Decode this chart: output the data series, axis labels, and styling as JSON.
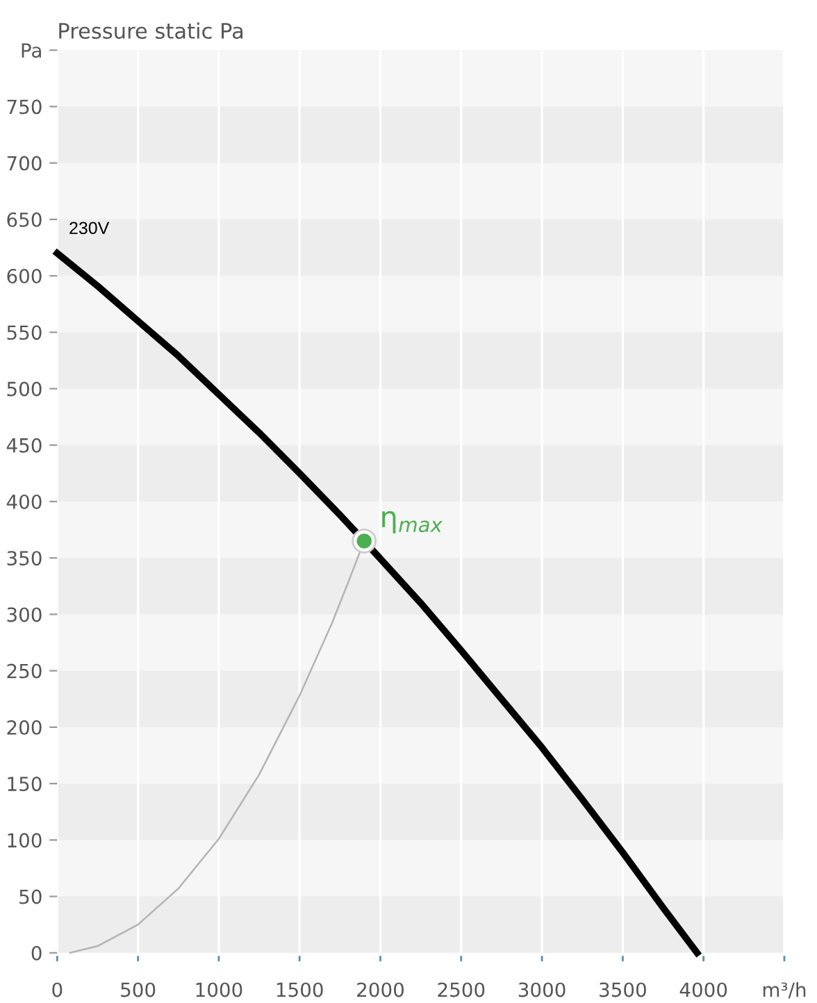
{
  "chart_data": {
    "type": "line",
    "title": "Pressure static Pa",
    "series": [
      {
        "name": "230V",
        "color": "#000000",
        "x": [
          0,
          250,
          500,
          750,
          1000,
          1250,
          1500,
          1750,
          1900,
          2250,
          2500,
          2750,
          3000,
          3250,
          3500,
          3750,
          3960
        ],
        "values": [
          620,
          591,
          560,
          529,
          495,
          461,
          425,
          388,
          365,
          310,
          268,
          225,
          182,
          136,
          89,
          40,
          0
        ]
      },
      {
        "color": "#b4b4b4",
        "x": [
          80,
          250,
          500,
          750,
          1000,
          1250,
          1500,
          1700,
          1800,
          1900
        ],
        "values": [
          0,
          6,
          25,
          57,
          101,
          158,
          228,
          292,
          328,
          365
        ]
      },
      {
        "type": "scatter",
        "color": "#4caf50",
        "x": [
          1900
        ],
        "values": [
          365
        ]
      }
    ],
    "annotations": [
      {
        "text": "η$_{max}$",
        "x": 1900,
        "y": 365
      }
    ],
    "xlim": [
      0,
      4500
    ],
    "ylim": [
      0,
      800
    ],
    "xticks": [
      0,
      500,
      1000,
      1500,
      2000,
      2500,
      3000,
      3500,
      4000,
      {
        "value": 4500,
        "label": "m³/h"
      }
    ],
    "yticks": [
      0,
      50,
      100,
      150,
      200,
      250,
      300,
      350,
      400,
      450,
      500,
      550,
      600,
      650,
      700,
      750,
      {
        "value": 800,
        "label": "Pa"
      }
    ],
    "grid": true,
    "line_style": "solid"
  }
}
